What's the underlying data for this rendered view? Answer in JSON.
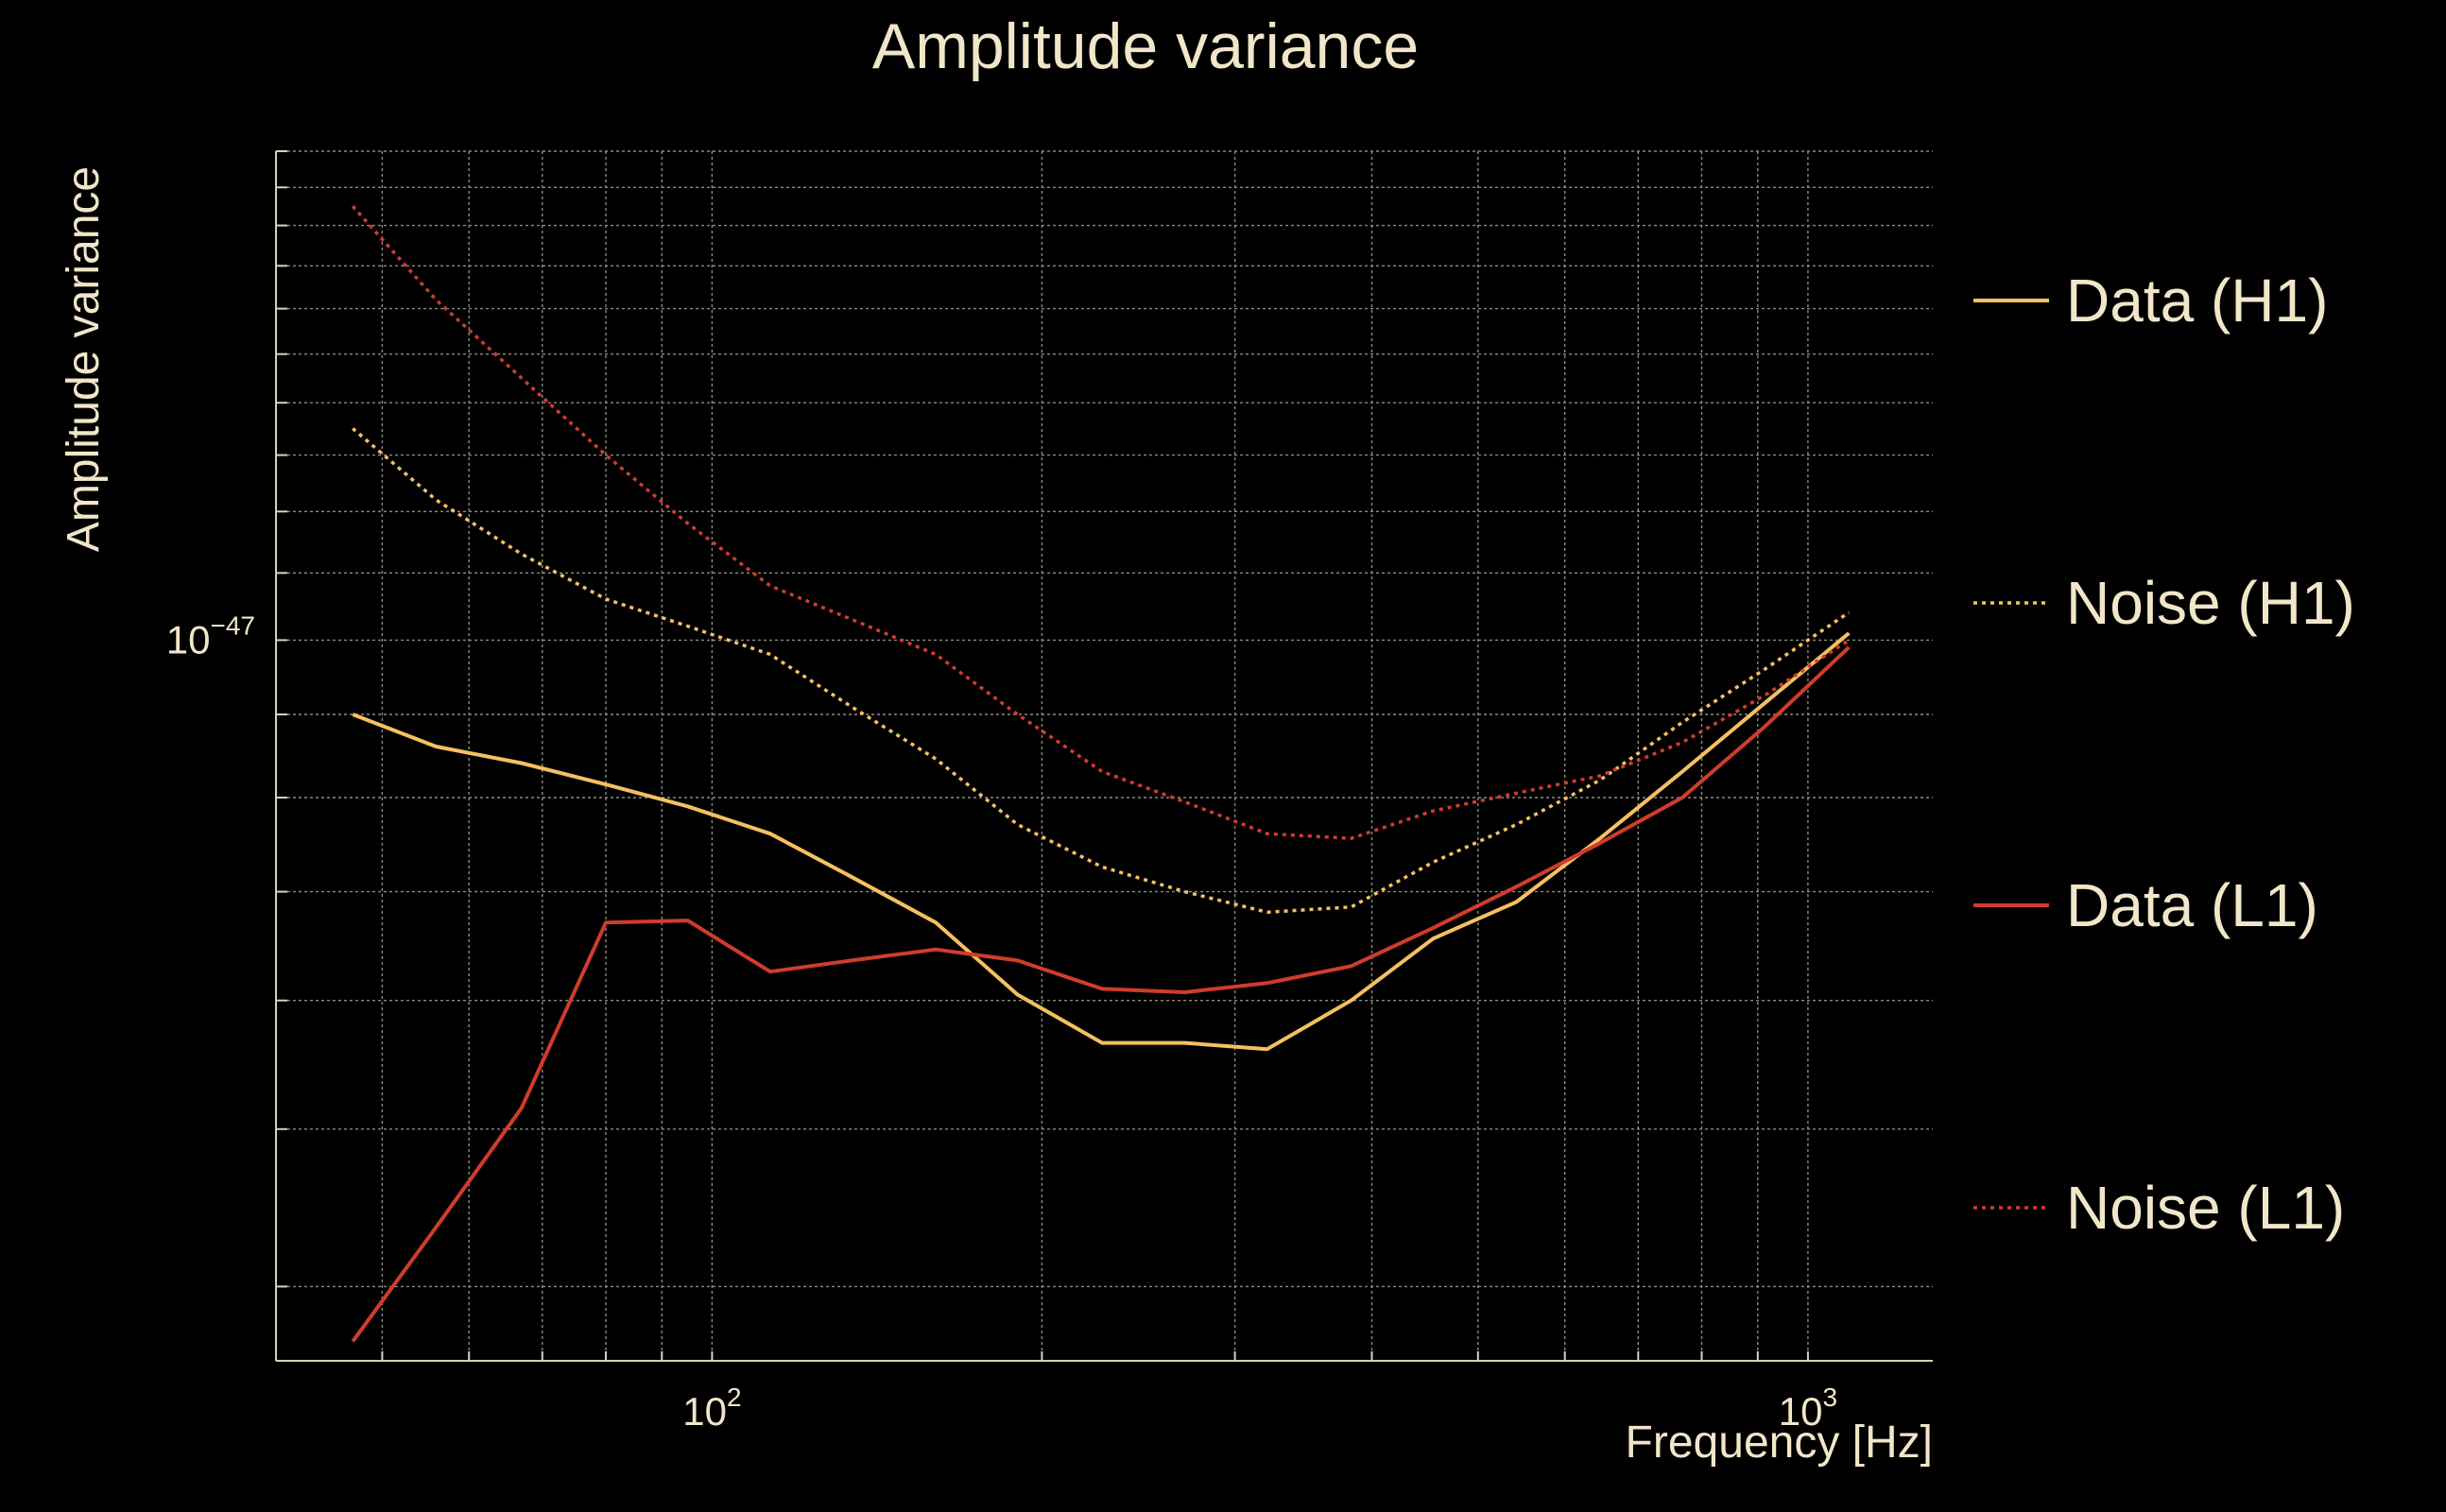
{
  "chart_data": {
    "type": "line",
    "title": "Amplitude variance",
    "xlabel": "Frequency [Hz]",
    "ylabel": "Amplitude variance",
    "xscale": "log",
    "yscale": "log",
    "xlim": [
      40,
      1300
    ],
    "ylim": [
      3.6e-48,
      2e-47
    ],
    "grid": true,
    "legend_position": "right",
    "x_tick_labels": [
      {
        "value": 100,
        "mantissa": "10",
        "exponent": "2"
      },
      {
        "value": 1000,
        "mantissa": "10",
        "exponent": "3"
      }
    ],
    "y_tick_labels": [
      {
        "value": 1e-47,
        "mantissa": "10",
        "exponent": "−47"
      }
    ],
    "x": [
      47,
      56,
      67,
      80,
      95,
      113,
      134,
      160,
      190,
      227,
      270,
      321,
      383,
      455,
      542,
      646,
      768,
      914,
      1090
    ],
    "series": [
      {
        "name": "Data (H1)",
        "color": "#f5c060",
        "style": "solid",
        "values": [
          9e-48,
          8.6e-48,
          8.4e-48,
          8.15e-48,
          7.9e-48,
          7.6e-48,
          7.15e-48,
          6.7e-48,
          6.05e-48,
          5.65e-48,
          5.65e-48,
          5.6e-48,
          6e-48,
          6.55e-48,
          6.9e-48,
          7.55e-48,
          8.3e-48,
          9.15e-48,
          1.01e-47
        ]
      },
      {
        "name": "Noise (H1)",
        "color": "#f5c060",
        "style": "dotted",
        "values": [
          1.35e-47,
          1.22e-47,
          1.13e-47,
          1.06e-47,
          1.02e-47,
          9.8e-48,
          9.1e-48,
          8.45e-48,
          7.7e-48,
          7.25e-48,
          7e-48,
          6.8e-48,
          6.85e-48,
          7.3e-48,
          7.7e-48,
          8.2e-48,
          8.9e-48,
          9.6e-48,
          1.04e-47
        ]
      },
      {
        "name": "Data (L1)",
        "color": "#d03c2c",
        "style": "solid",
        "values": [
          3.7e-48,
          4.35e-48,
          5.15e-48,
          6.7e-48,
          6.72e-48,
          6.25e-48,
          6.35e-48,
          6.45e-48,
          6.35e-48,
          6.1e-48,
          6.07e-48,
          6.15e-48,
          6.3e-48,
          6.65e-48,
          7.05e-48,
          7.5e-48,
          8e-48,
          8.85e-48,
          9.9e-48
        ]
      },
      {
        "name": "Noise (L1)",
        "color": "#d03c2c",
        "style": "dotted",
        "values": [
          1.85e-47,
          1.62e-47,
          1.45e-47,
          1.3e-47,
          1.18e-47,
          1.08e-47,
          1.03e-47,
          9.8e-48,
          9e-48,
          8.3e-48,
          7.95e-48,
          7.6e-48,
          7.55e-48,
          7.85e-48,
          8.05e-48,
          8.25e-48,
          8.65e-48,
          9.25e-48,
          1e-47
        ]
      }
    ]
  }
}
